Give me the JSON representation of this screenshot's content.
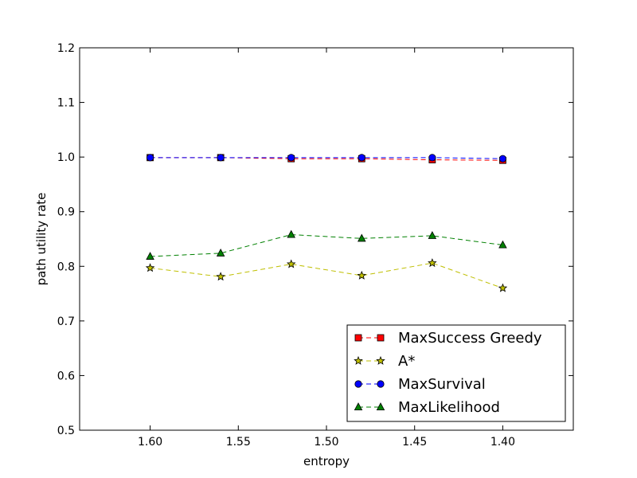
{
  "chart_data": {
    "type": "line",
    "title": "",
    "xlabel": "entropy",
    "ylabel": "path utility rate",
    "x": [
      1.6,
      1.56,
      1.52,
      1.48,
      1.44,
      1.4
    ],
    "xlim": [
      1.64,
      1.36
    ],
    "ylim": [
      0.5,
      1.2
    ],
    "x_ticks": [
      "1.60",
      "1.55",
      "1.50",
      "1.45",
      "1.40"
    ],
    "x_tick_values": [
      1.6,
      1.55,
      1.5,
      1.45,
      1.4
    ],
    "y_ticks": [
      "0.5",
      "0.6",
      "0.7",
      "0.8",
      "0.9",
      "1.0",
      "1.1",
      "1.2"
    ],
    "y_tick_values": [
      0.5,
      0.6,
      0.7,
      0.8,
      0.9,
      1.0,
      1.1,
      1.2
    ],
    "grid": false,
    "legend_position": "lower-right",
    "series": [
      {
        "name": "MaxSuccess Greedy",
        "values": [
          0.999,
          0.999,
          0.997,
          0.997,
          0.995,
          0.994
        ],
        "color": "#ff0000",
        "marker": "square"
      },
      {
        "name": "A*",
        "values": [
          0.797,
          0.781,
          0.804,
          0.783,
          0.806,
          0.76
        ],
        "color": "#bfbf00",
        "marker": "star"
      },
      {
        "name": "MaxSurvival",
        "values": [
          0.999,
          0.999,
          0.999,
          0.999,
          0.999,
          0.997
        ],
        "color": "#0000ff",
        "marker": "circle"
      },
      {
        "name": "MaxLikelihood",
        "values": [
          0.818,
          0.824,
          0.858,
          0.851,
          0.856,
          0.839
        ],
        "color": "#008000",
        "marker": "triangle"
      }
    ]
  }
}
